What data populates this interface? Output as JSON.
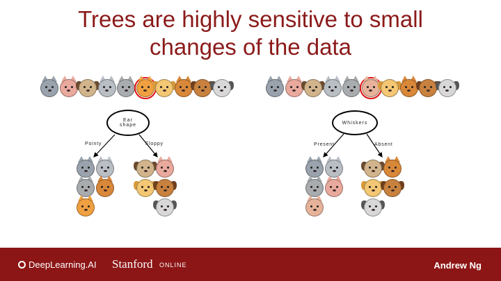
{
  "slide": {
    "title_line1": "Trees are highly sensitive to small",
    "title_line2": "changes of the data"
  },
  "left_tree": {
    "root": "Ear shape",
    "left_branch": "Pointy",
    "right_branch": "Floppy"
  },
  "right_tree": {
    "root": "Whiskers",
    "left_branch": "Present",
    "right_branch": "Absent"
  },
  "footer": {
    "deeplearning": "DeepLearning.AI",
    "stanford": "Stanford",
    "online": "ONLINE",
    "author": "Andrew Ng"
  },
  "colors": {
    "title": "#8b1a1a",
    "footer_bg": "#8c1515",
    "highlight": "#e01010"
  }
}
